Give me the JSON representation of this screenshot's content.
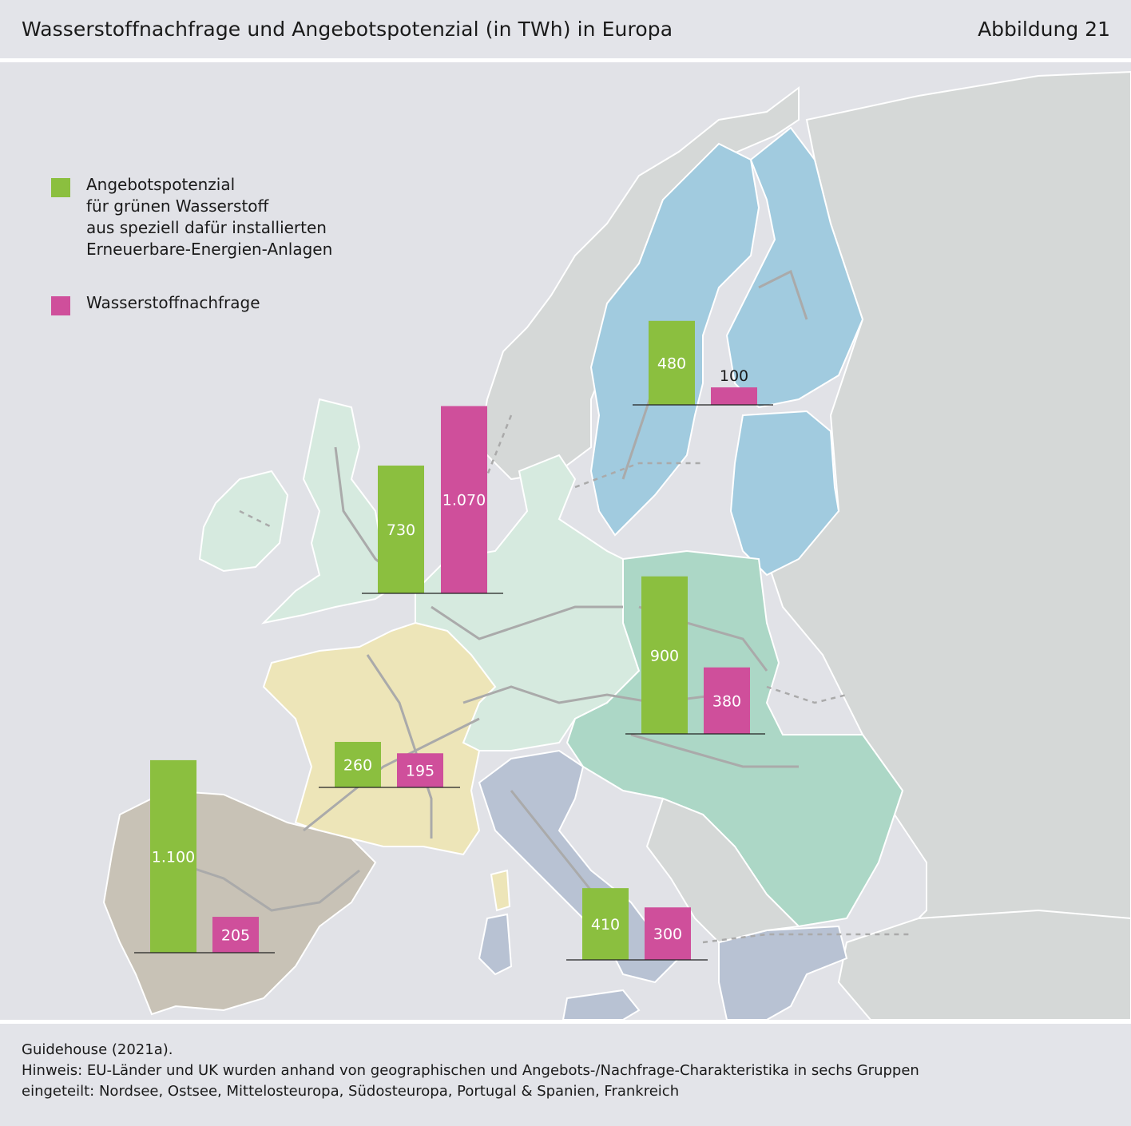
{
  "header": {
    "title": "Wasserstoffnachfrage und Angebotspotenzial (in TWh) in Europa",
    "figure_label": "Abbildung 21"
  },
  "legend": {
    "supply_label_lines": [
      "Angebotspotenzial",
      "für grünen Wasserstoff",
      "aus speziell dafür installierten",
      "Erneuerbare-Energien-Anlagen"
    ],
    "demand_label": "Wasserstoffnachfrage"
  },
  "colors": {
    "supply": "#8bbf3f",
    "demand": "#cf4f9b",
    "baltic": "#a1cbdf",
    "north_sea": "#d6eadf",
    "central_east": "#acd7c6",
    "southeast": "#b8c2d3",
    "iberia": "#c8c2b6",
    "france": "#ede5b8",
    "non_eu": "#d5d8d7",
    "sea": "#e1e2e7",
    "roads": "#aaaaaa"
  },
  "chart_data": {
    "type": "bar",
    "unit": "TWh",
    "regions": [
      {
        "supply": 730,
        "supply_label": "730",
        "demand": 1070,
        "demand_label": "1.070"
      },
      {
        "supply": 480,
        "supply_label": "480",
        "demand": 100,
        "demand_label": "100"
      },
      {
        "supply": 900,
        "supply_label": "900",
        "demand": 380,
        "demand_label": "380"
      },
      {
        "supply": 260,
        "supply_label": "260",
        "demand": 195,
        "demand_label": "195"
      },
      {
        "supply": 1100,
        "supply_label": "1.100",
        "demand": 205,
        "demand_label": "205"
      },
      {
        "supply": 410,
        "supply_label": "410",
        "demand": 300,
        "demand_label": "300"
      }
    ]
  },
  "footer": {
    "source": "Guidehouse (2021a).",
    "note_lines": [
      "Hinweis: EU-Länder und UK wurden anhand von geographischen und Angebots-/Nachfrage-Charakteristika in sechs Gruppen",
      "eingeteilt: Nordsee, Ostsee, Mittelosteuropa, Südosteuropa, Portugal & Spanien, Frankreich"
    ]
  }
}
